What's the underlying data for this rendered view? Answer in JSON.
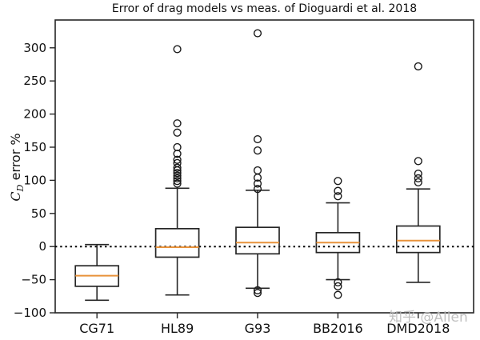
{
  "figure": {
    "ylabel_var": "C",
    "ylabel_sub": "D",
    "ylabel_rest": " error %",
    "watermark": "知乎 @Allen"
  },
  "chart_data": {
    "type": "boxplot",
    "title": "Error of drag models vs meas. of Dioguardi et al. 2018",
    "ylabel": "C_D error %",
    "xlabel": "",
    "categories": [
      "CG71",
      "HL89",
      "G93",
      "BB2016",
      "DMD2018"
    ],
    "yticks": [
      -100,
      -50,
      0,
      50,
      100,
      150,
      200,
      250,
      300
    ],
    "ylim": [
      -100,
      342
    ],
    "grid": false,
    "zero_reference_line": 0,
    "boxes": [
      {
        "label": "CG71",
        "whisker_low": -81,
        "q1": -60,
        "median": -44,
        "q3": -29,
        "whisker_high": 3,
        "fliers_high": [],
        "fliers_low": []
      },
      {
        "label": "HL89",
        "whisker_low": -73,
        "q1": -16,
        "median": -1,
        "q3": 27,
        "whisker_high": 88,
        "fliers_high": [
          95,
          99,
          103,
          107,
          111,
          115,
          119,
          126,
          131,
          140,
          150,
          172,
          186,
          298
        ],
        "fliers_low": []
      },
      {
        "label": "G93",
        "whisker_low": -63,
        "q1": -11,
        "median": 6,
        "q3": 29,
        "whisker_high": 85,
        "fliers_high": [
          87,
          95,
          104,
          115,
          145,
          162,
          322
        ],
        "fliers_low": [
          -66,
          -70
        ]
      },
      {
        "label": "BB2016",
        "whisker_low": -50,
        "q1": -9,
        "median": 6,
        "q3": 21,
        "whisker_high": 66,
        "fliers_high": [
          76,
          84,
          99
        ],
        "fliers_low": [
          -54,
          -60,
          -73
        ]
      },
      {
        "label": "DMD2018",
        "whisker_low": -54,
        "q1": -9,
        "median": 9,
        "q3": 31,
        "whisker_high": 87,
        "fliers_high": [
          97,
          103,
          110,
          129,
          272
        ],
        "fliers_low": []
      }
    ],
    "colors": {
      "box": "#262626",
      "median": "#e8923a",
      "flier": "#1a1a1a",
      "zero_line": "#000000",
      "tick_label": "#111111"
    }
  }
}
